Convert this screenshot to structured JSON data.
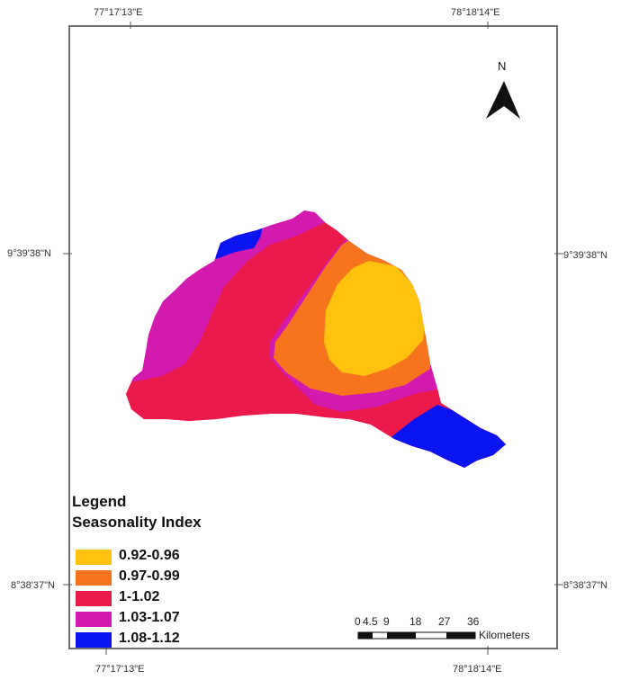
{
  "coords": {
    "top_left_lon": "77°17'13\"E",
    "top_right_lon": "78°18'14\"E",
    "bottom_left_lon": "77°17'13\"E",
    "bottom_right_lon": "78°18'14\"E",
    "left_upper_lat": "9°39'38\"N",
    "right_upper_lat": "9°39'38\"N",
    "left_lower_lat": "8°38'37\"N",
    "right_lower_lat": "8°38'37\"N"
  },
  "north_arrow": {
    "label": "N"
  },
  "legend": {
    "title": "Legend",
    "subtitle": "Seasonality Index",
    "items": [
      {
        "label": "0.92-0.96",
        "color": "#FFC20E"
      },
      {
        "label": "0.97-0.99",
        "color": "#F7741F"
      },
      {
        "label": "1-1.02",
        "color": "#EC1A4B"
      },
      {
        "label": "1.03-1.07",
        "color": "#D21AAF"
      },
      {
        "label": "1.08-1.12",
        "color": "#0A14F0"
      }
    ]
  },
  "scale_bar": {
    "ticks": [
      "0",
      "4.5",
      "9",
      "18",
      "27",
      "36"
    ],
    "unit": "Kilometers"
  }
}
